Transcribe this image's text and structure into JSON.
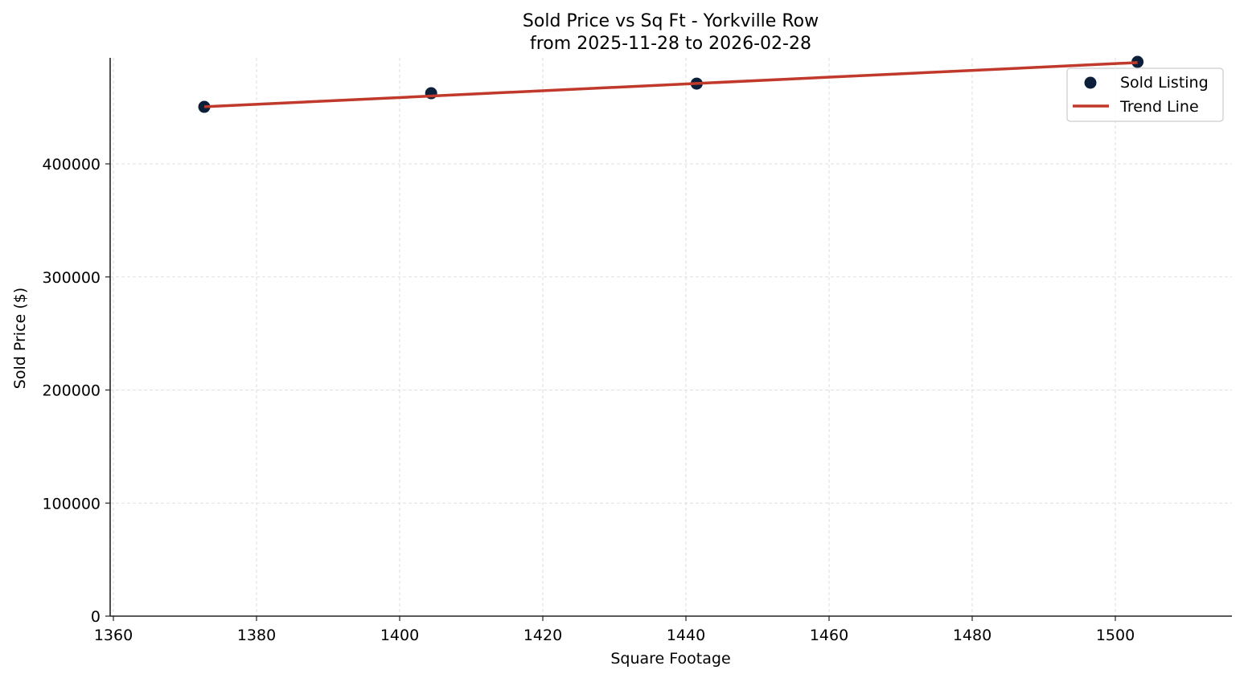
{
  "chart_data": {
    "type": "scatter",
    "title": "Sold Price vs Sq Ft - Yorkville Row",
    "subtitle": "from 2025-11-28 to 2026-02-28",
    "xlabel": "Square Footage",
    "ylabel": "Sold Price ($)",
    "xlim": [
      1359.5,
      1516
    ],
    "ylim": [
      0,
      492000
    ],
    "xticks": [
      1360,
      1380,
      1400,
      1420,
      1440,
      1460,
      1480,
      1500
    ],
    "yticks": [
      0,
      100000,
      200000,
      300000,
      400000
    ],
    "grid": true,
    "legend_position": "upper right",
    "series": [
      {
        "name": "Sold Listing",
        "type": "scatter",
        "color": "#0b1f3a",
        "x": [
          1372.7,
          1404.4,
          1441.5,
          1503.1
        ],
        "y": [
          450400,
          462500,
          471000,
          490200
        ]
      },
      {
        "name": "Trend Line",
        "type": "line",
        "color": "#c0392b",
        "x": [
          1372.7,
          1503.1
        ],
        "y": [
          450500,
          489600
        ]
      }
    ]
  },
  "legend": {
    "items": [
      {
        "label": "Sold Listing"
      },
      {
        "label": "Trend Line"
      }
    ]
  }
}
